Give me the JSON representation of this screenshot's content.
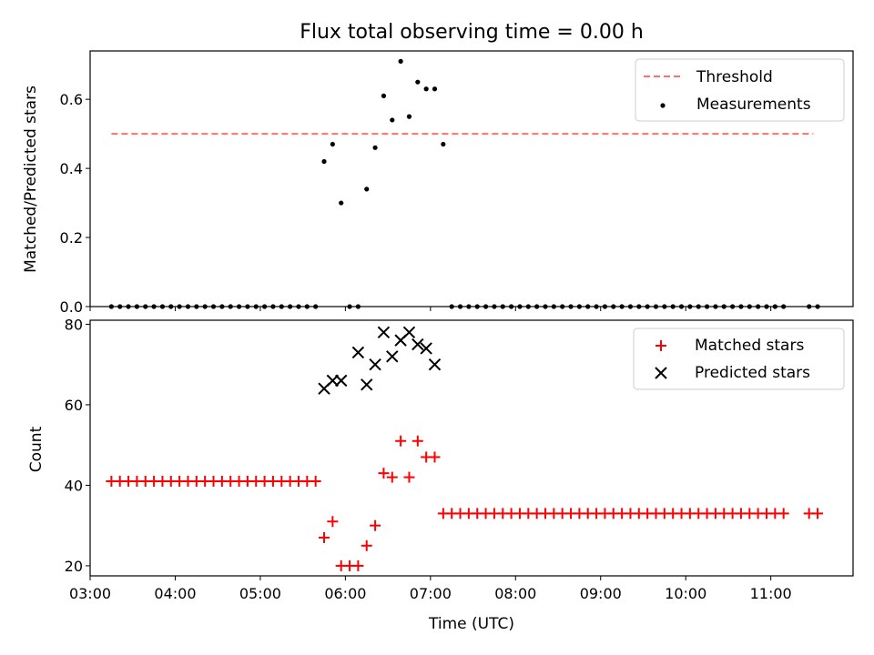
{
  "title": "Flux total observing time = 0.00 h",
  "chart_data": [
    {
      "type": "scatter",
      "ylabel": "Matched/Predicted stars",
      "xlabel": "",
      "xlim": [
        "03:00",
        "11:58"
      ],
      "ylim": [
        0,
        0.74
      ],
      "yticks": [
        0.0,
        0.2,
        0.4,
        0.6
      ],
      "ytick_labels": [
        "0.0",
        "0.2",
        "0.4",
        "0.6"
      ],
      "xticks": [
        "03:00",
        "04:00",
        "05:00",
        "06:00",
        "07:00",
        "08:00",
        "09:00",
        "10:00",
        "11:00"
      ],
      "show_xtick_labels": false,
      "grid": false,
      "legend": "top-right",
      "threshold": {
        "name": "Threshold",
        "value": 0.5,
        "x_start": "03:15",
        "x_end": "11:30",
        "color": "#ff7070"
      },
      "series": [
        {
          "name": "Measurements",
          "color": "#000000",
          "marker": "dot",
          "x": [
            "03:15",
            "03:21",
            "03:27",
            "03:33",
            "03:39",
            "03:45",
            "03:51",
            "03:57",
            "04:03",
            "04:09",
            "04:15",
            "04:21",
            "04:27",
            "04:33",
            "04:39",
            "04:45",
            "04:51",
            "04:57",
            "05:03",
            "05:09",
            "05:15",
            "05:21",
            "05:27",
            "05:33",
            "05:39",
            "05:45",
            "05:51",
            "05:57",
            "06:03",
            "06:09",
            "06:15",
            "06:21",
            "06:27",
            "06:33",
            "06:39",
            "06:45",
            "06:51",
            "06:57",
            "07:03",
            "07:09",
            "07:15",
            "07:21",
            "07:27",
            "07:33",
            "07:39",
            "07:45",
            "07:51",
            "07:57",
            "08:03",
            "08:09",
            "08:15",
            "08:21",
            "08:27",
            "08:33",
            "08:39",
            "08:45",
            "08:51",
            "08:57",
            "09:03",
            "09:09",
            "09:15",
            "09:21",
            "09:27",
            "09:33",
            "09:39",
            "09:45",
            "09:51",
            "09:57",
            "10:03",
            "10:09",
            "10:15",
            "10:21",
            "10:27",
            "10:33",
            "10:39",
            "10:45",
            "10:51",
            "10:57",
            "11:03",
            "11:09",
            "11:27",
            "11:33"
          ],
          "y": [
            0,
            0,
            0,
            0,
            0,
            0,
            0,
            0,
            0,
            0,
            0,
            0,
            0,
            0,
            0,
            0,
            0,
            0,
            0,
            0,
            0,
            0,
            0,
            0,
            0,
            0.42,
            0.47,
            0.3,
            0,
            0,
            0.34,
            0.46,
            0.61,
            0.54,
            0.71,
            0.55,
            0.65,
            0.63,
            0.63,
            0.47,
            0,
            0,
            0,
            0,
            0,
            0,
            0,
            0,
            0,
            0,
            0,
            0,
            0,
            0,
            0,
            0,
            0,
            0,
            0,
            0,
            0,
            0,
            0,
            0,
            0,
            0,
            0,
            0,
            0,
            0,
            0,
            0,
            0,
            0,
            0,
            0,
            0,
            0,
            0,
            0,
            0,
            0
          ]
        }
      ]
    },
    {
      "type": "scatter",
      "ylabel": "Count",
      "xlabel": "Time (UTC)",
      "xlim": [
        "03:00",
        "11:58"
      ],
      "ylim": [
        17.5,
        81
      ],
      "yticks": [
        20,
        40,
        60,
        80
      ],
      "ytick_labels": [
        "20",
        "40",
        "60",
        "80"
      ],
      "xticks": [
        "03:00",
        "04:00",
        "05:00",
        "06:00",
        "07:00",
        "08:00",
        "09:00",
        "10:00",
        "11:00"
      ],
      "xtick_labels": [
        "03:00",
        "04:00",
        "05:00",
        "06:00",
        "07:00",
        "08:00",
        "09:00",
        "10:00",
        "11:00"
      ],
      "grid": false,
      "legend": "top-right",
      "series": [
        {
          "name": "Matched stars",
          "color": "#ff0000",
          "marker": "plus",
          "x": [
            "03:15",
            "03:21",
            "03:27",
            "03:33",
            "03:39",
            "03:45",
            "03:51",
            "03:57",
            "04:03",
            "04:09",
            "04:15",
            "04:21",
            "04:27",
            "04:33",
            "04:39",
            "04:45",
            "04:51",
            "04:57",
            "05:03",
            "05:09",
            "05:15",
            "05:21",
            "05:27",
            "05:33",
            "05:39",
            "05:45",
            "05:51",
            "05:57",
            "06:03",
            "06:09",
            "06:15",
            "06:21",
            "06:27",
            "06:33",
            "06:39",
            "06:45",
            "06:51",
            "06:57",
            "07:03",
            "07:09",
            "07:15",
            "07:21",
            "07:27",
            "07:33",
            "07:39",
            "07:45",
            "07:51",
            "07:57",
            "08:03",
            "08:09",
            "08:15",
            "08:21",
            "08:27",
            "08:33",
            "08:39",
            "08:45",
            "08:51",
            "08:57",
            "09:03",
            "09:09",
            "09:15",
            "09:21",
            "09:27",
            "09:33",
            "09:39",
            "09:45",
            "09:51",
            "09:57",
            "10:03",
            "10:09",
            "10:15",
            "10:21",
            "10:27",
            "10:33",
            "10:39",
            "10:45",
            "10:51",
            "10:57",
            "11:03",
            "11:09",
            "11:27",
            "11:33"
          ],
          "y": [
            41,
            41,
            41,
            41,
            41,
            41,
            41,
            41,
            41,
            41,
            41,
            41,
            41,
            41,
            41,
            41,
            41,
            41,
            41,
            41,
            41,
            41,
            41,
            41,
            41,
            27,
            31,
            20,
            20,
            20,
            25,
            30,
            43,
            42,
            51,
            42,
            51,
            47,
            47,
            33,
            33,
            33,
            33,
            33,
            33,
            33,
            33,
            33,
            33,
            33,
            33,
            33,
            33,
            33,
            33,
            33,
            33,
            33,
            33,
            33,
            33,
            33,
            33,
            33,
            33,
            33,
            33,
            33,
            33,
            33,
            33,
            33,
            33,
            33,
            33,
            33,
            33,
            33,
            33,
            33,
            33,
            33
          ]
        },
        {
          "name": "Predicted stars",
          "color": "#000000",
          "marker": "x",
          "x": [
            "05:45",
            "05:51",
            "05:57",
            "06:09",
            "06:15",
            "06:21",
            "06:27",
            "06:33",
            "06:39",
            "06:45",
            "06:51",
            "06:57",
            "07:03"
          ],
          "y": [
            64,
            66,
            66,
            73,
            65,
            70,
            78,
            72,
            76,
            78,
            75,
            74,
            70
          ]
        }
      ]
    }
  ]
}
